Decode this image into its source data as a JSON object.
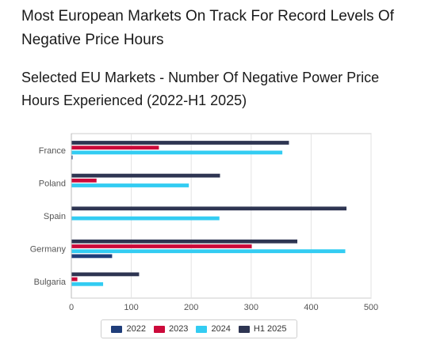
{
  "heading": "Most European Markets On Track For Record Levels Of Negative Price Hours",
  "subheading": "Selected EU Markets - Number Of Negative Power Price Hours Experienced (2022-H1 2025)",
  "chart_data": {
    "type": "bar",
    "orientation": "horizontal",
    "categories": [
      "France",
      "Poland",
      "Spain",
      "Germany",
      "Bulgaria"
    ],
    "series": [
      {
        "name": "H1 2025",
        "color": "#2e3552",
        "values": [
          363,
          248,
          459,
          377,
          113
        ]
      },
      {
        "name": "2023",
        "color": "#cc0a3a",
        "values": [
          146,
          42,
          0,
          301,
          10
        ]
      },
      {
        "name": "2024",
        "color": "#33ccf2",
        "values": [
          352,
          196,
          247,
          457,
          53
        ]
      },
      {
        "name": "2022",
        "color": "#1f3d7a",
        "values": [
          2,
          0,
          0,
          68,
          0
        ]
      }
    ],
    "xlim": [
      0,
      500
    ],
    "xticks": [
      "0",
      "100",
      "200",
      "300",
      "400",
      "500"
    ],
    "xlabel": "",
    "ylabel": "",
    "grid": true,
    "legend_position": "bottom",
    "legend": [
      {
        "name": "2022",
        "color": "#1f3d7a"
      },
      {
        "name": "2023",
        "color": "#cc0a3a"
      },
      {
        "name": "2024",
        "color": "#33ccf2"
      },
      {
        "name": "H1 2025",
        "color": "#2e3552"
      }
    ]
  }
}
